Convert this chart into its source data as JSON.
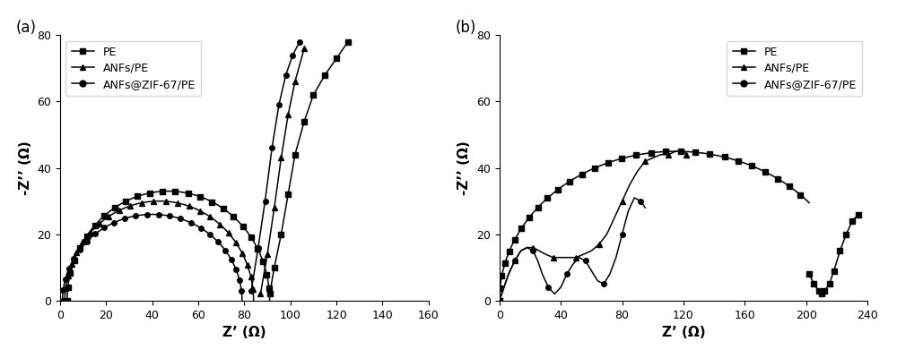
{
  "panel_a": {
    "label": "(a)",
    "xlabel": "Z’ (Ω)",
    "ylabel": "-Z’’ (Ω)",
    "xlim": [
      0,
      160
    ],
    "ylim": [
      0,
      80
    ],
    "xticks": [
      0,
      20,
      40,
      60,
      80,
      100,
      120,
      140,
      160
    ],
    "yticks": [
      0,
      20,
      40,
      60,
      80
    ]
  },
  "panel_b": {
    "label": "(b)",
    "xlabel": "Z’ (Ω)",
    "ylabel": "-Z’’ (Ω)",
    "xlim": [
      0,
      240
    ],
    "ylim": [
      0,
      80
    ],
    "xticks": [
      0,
      40,
      80,
      120,
      160,
      200,
      240
    ],
    "yticks": [
      0,
      20,
      40,
      60,
      80
    ]
  },
  "color": "#000000",
  "markersize": 4,
  "linewidth": 1.1,
  "fontsize_label": 11,
  "fontsize_tick": 9,
  "fontsize_panel": 12
}
